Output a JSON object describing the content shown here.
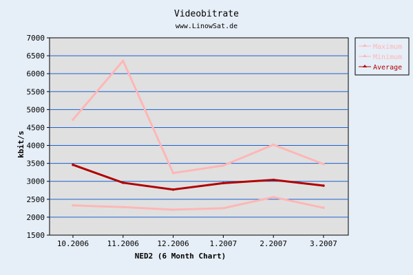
{
  "chart_data": {
    "type": "line",
    "title": "Videobitrate",
    "subtitle": "www.LinowSat.de",
    "xlabel": "NED2 (6 Month Chart)",
    "ylabel": "kbit/s",
    "categories": [
      "10.2006",
      "11.2006",
      "12.2006",
      "1.2007",
      "2.2007",
      "3.2007"
    ],
    "ylim": [
      1500,
      7000
    ],
    "yticks": [
      1500,
      2000,
      2500,
      3000,
      3500,
      4000,
      4500,
      5000,
      5500,
      6000,
      6500,
      7000
    ],
    "grid": true,
    "legend_position": "top-right",
    "series": [
      {
        "name": "Maximum",
        "color": "#ffb6b6",
        "values": [
          4720,
          6360,
          3230,
          3440,
          4020,
          3480
        ]
      },
      {
        "name": "Minimum",
        "color": "#ffb6b6",
        "values": [
          2330,
          2280,
          2210,
          2250,
          2560,
          2260
        ]
      },
      {
        "name": "Average",
        "color": "#b00000",
        "values": [
          3460,
          2960,
          2770,
          2950,
          3040,
          2880
        ]
      }
    ]
  }
}
